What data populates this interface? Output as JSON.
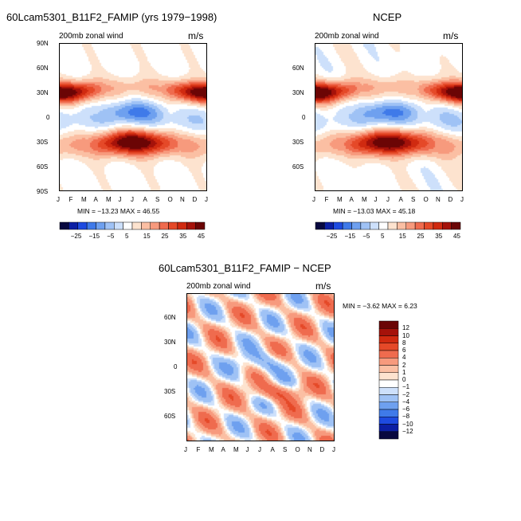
{
  "colors": {
    "abs": [
      "#08083f",
      "#0c1fa4",
      "#1e4be0",
      "#3f7ae9",
      "#6ea0ef",
      "#9fc2f5",
      "#cde0fb",
      "#ffffff",
      "#fde3cf",
      "#fbbfa3",
      "#f79a7d",
      "#ef6b4e",
      "#e54928",
      "#d02a10",
      "#a5120a",
      "#6b0505"
    ],
    "diff": [
      "#6b0505",
      "#a5120a",
      "#d02a10",
      "#e54928",
      "#ef6b4e",
      "#f79a7d",
      "#fbbfa3",
      "#fde3cf",
      "#ffffff",
      "#cde0fb",
      "#9fc2f5",
      "#6ea0ef",
      "#3f7ae9",
      "#1e4be0",
      "#0c1fa4",
      "#08083f"
    ]
  },
  "chart_data": [
    {
      "type": "heatmap",
      "title": "60Lcam5301_B11F2_FAMIP (yrs 1979−1998)",
      "subtitle": "200mb zonal wind",
      "units": "m/s",
      "months": [
        "J",
        "F",
        "M",
        "A",
        "M",
        "J",
        "J",
        "A",
        "S",
        "O",
        "N",
        "D",
        "J"
      ],
      "lat_ticks": [
        "90N",
        "60N",
        "30N",
        "0",
        "30S",
        "60S",
        "90S"
      ],
      "stats": "MIN = −13.23  MAX =  46.55",
      "colorbar_labels": [
        "−25",
        "−15",
        "−5",
        "5",
        "15",
        "25",
        "35",
        "45"
      ],
      "zlim": [
        -30,
        50
      ]
    },
    {
      "type": "heatmap",
      "title": "NCEP",
      "subtitle": "200mb zonal wind",
      "units": "m/s",
      "months": [
        "J",
        "F",
        "M",
        "A",
        "M",
        "J",
        "J",
        "A",
        "S",
        "O",
        "N",
        "D",
        "J"
      ],
      "lat_ticks": [
        "60N",
        "30N",
        "0",
        "30S",
        "60S"
      ],
      "stats": "MIN = −13.03  MAX =  45.18",
      "colorbar_labels": [
        "−25",
        "−15",
        "−5",
        "5",
        "15",
        "25",
        "35",
        "45"
      ],
      "zlim": [
        -30,
        50
      ]
    },
    {
      "type": "heatmap",
      "title": "60Lcam5301_B11F2_FAMIP − NCEP",
      "subtitle": "200mb zonal wind",
      "units": "m/s",
      "months": [
        "J",
        "F",
        "M",
        "A",
        "M",
        "J",
        "J",
        "A",
        "S",
        "O",
        "N",
        "D",
        "J"
      ],
      "lat_ticks": [
        "60N",
        "30N",
        "0",
        "30S",
        "60S"
      ],
      "stats": "MIN =   −3.62  MAX =    6.23",
      "colorbar_labels": [
        "12",
        "10",
        "8",
        "6",
        "4",
        "2",
        "1",
        "0",
        "−1",
        "−2",
        "−4",
        "−6",
        "−8",
        "−10",
        "−12"
      ],
      "levels": [
        -12,
        -10,
        -8,
        -6,
        -4,
        -2,
        -1,
        0,
        1,
        2,
        4,
        6,
        8,
        10,
        12
      ]
    }
  ]
}
